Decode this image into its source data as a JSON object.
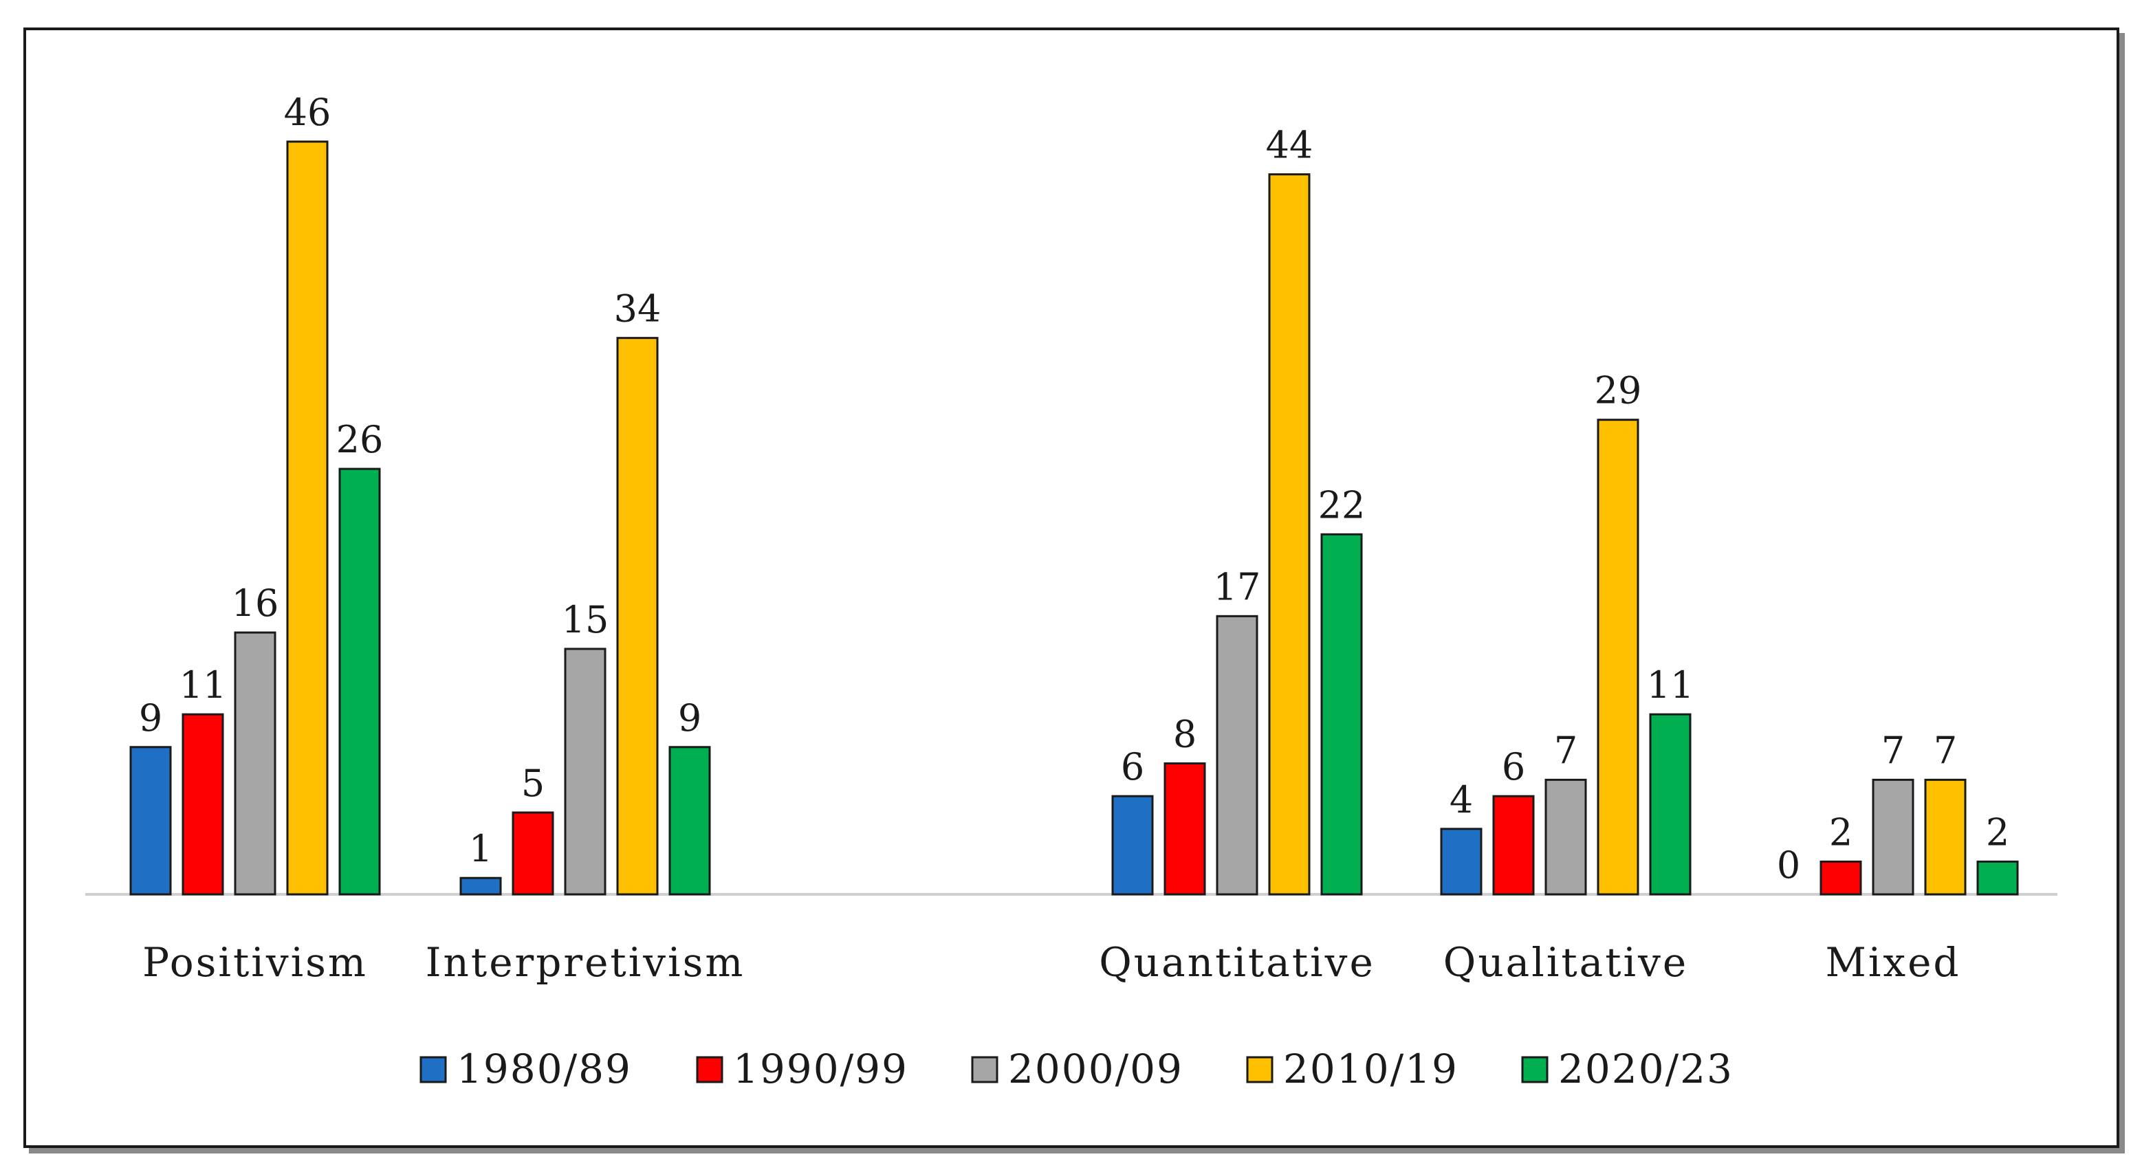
{
  "chart_data": {
    "type": "bar",
    "title": "",
    "xlabel": "",
    "ylabel": "",
    "ylim": [
      0,
      50
    ],
    "grid": false,
    "legend_position": "bottom",
    "categories": [
      "Positivism",
      "Interpretivism",
      "Quantitative",
      "Qualitative",
      "Mixed"
    ],
    "category_gap_after": [
      "Interpretivism"
    ],
    "series": [
      {
        "name": "1980/89",
        "color": "#1f6fc4",
        "values": [
          9,
          1,
          6,
          4,
          0
        ]
      },
      {
        "name": "1990/99",
        "color": "#ff0000",
        "values": [
          11,
          5,
          8,
          6,
          2
        ]
      },
      {
        "name": "2000/09",
        "color": "#a6a6a6",
        "values": [
          16,
          15,
          17,
          7,
          7
        ]
      },
      {
        "name": "2010/19",
        "color": "#ffc000",
        "values": [
          46,
          34,
          44,
          29,
          7
        ]
      },
      {
        "name": "2020/23",
        "color": "#00b050",
        "values": [
          26,
          9,
          22,
          11,
          2
        ]
      }
    ],
    "data_labels": true
  }
}
